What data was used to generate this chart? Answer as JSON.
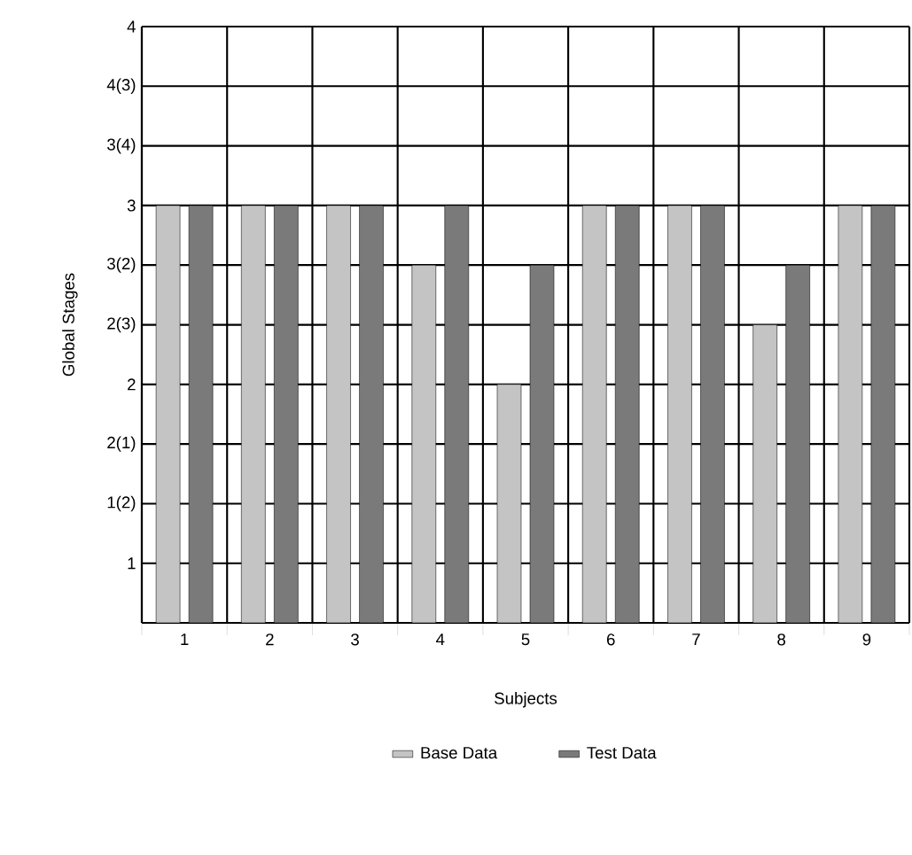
{
  "chart_data": {
    "type": "bar",
    "xlabel": "Subjects",
    "ylabel": "Global Stages",
    "categories": [
      "1",
      "2",
      "3",
      "4",
      "5",
      "6",
      "7",
      "8",
      "9"
    ],
    "series": [
      {
        "name": "Base Data",
        "color": "#c4c4c4",
        "values": [
          3,
          3,
          3,
          2.667,
          2,
          3,
          3,
          2.333,
          3
        ]
      },
      {
        "name": "Test Data",
        "color": "#7a7a7a",
        "values": [
          3,
          3,
          3,
          3,
          2.667,
          3,
          3,
          2.667,
          3
        ]
      }
    ],
    "ylim": [
      0.667,
      4
    ],
    "yticks": [
      1,
      {
        "value": 1.333,
        "label": "1(2)"
      },
      {
        "value": 1.667,
        "label": "2(1)"
      },
      2,
      {
        "value": 2.333,
        "label": "2(3)"
      },
      {
        "value": 2.667,
        "label": "3(2)"
      },
      3,
      {
        "value": 3.333,
        "label": "3(4)"
      },
      {
        "value": 3.667,
        "label": "4(3)"
      },
      4
    ],
    "grid": true,
    "legend": "bottom"
  }
}
